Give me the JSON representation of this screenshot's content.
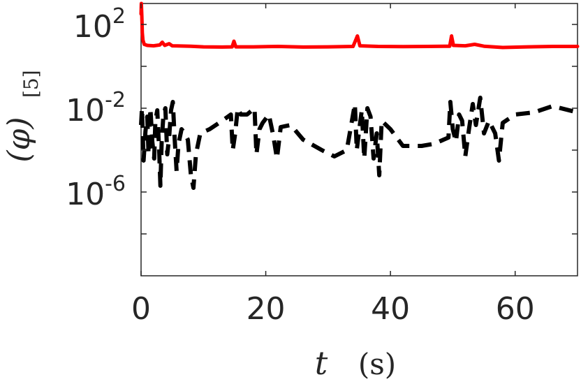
{
  "chart_data": {
    "type": "line",
    "title": "",
    "xlabel": {
      "var": "t",
      "unit": "(s)"
    },
    "ylabel": {
      "var": "(φ)",
      "subscript": "[5]"
    },
    "xlim": [
      0,
      70
    ],
    "ylim_exponent": [
      -10,
      3
    ],
    "yscale": "log",
    "x_ticks": [
      0,
      20,
      40,
      60
    ],
    "x_tick_labels": [
      "0",
      "20",
      "40",
      "60"
    ],
    "y_ticks": [
      {
        "exp": 2,
        "base": "10",
        "sup": "2"
      },
      {
        "exp": -2,
        "base": "10",
        "sup": "-2"
      },
      {
        "exp": -6,
        "base": "10",
        "sup": "-6"
      }
    ],
    "y_minor_exp": [
      0,
      -4,
      -8
    ],
    "grid": false,
    "legend": "none",
    "series": [
      {
        "style": "solid",
        "color": "#ff0000",
        "points": [
          [
            0.0,
            2.5
          ],
          [
            0.05,
            3.0
          ],
          [
            0.12,
            2.4
          ],
          [
            0.2,
            1.6
          ],
          [
            0.3,
            1.25
          ],
          [
            0.5,
            1.05
          ],
          [
            1.0,
            1.0
          ],
          [
            2.0,
            0.98
          ],
          [
            3.0,
            1.02
          ],
          [
            3.4,
            1.15
          ],
          [
            3.8,
            1.0
          ],
          [
            4.5,
            1.08
          ],
          [
            5.0,
            0.98
          ],
          [
            8,
            0.96
          ],
          [
            10,
            0.93
          ],
          [
            13,
            0.92
          ],
          [
            14.6,
            0.93
          ],
          [
            14.9,
            1.2
          ],
          [
            15.2,
            0.93
          ],
          [
            18,
            0.93
          ],
          [
            22,
            0.95
          ],
          [
            26,
            0.92
          ],
          [
            30,
            0.93
          ],
          [
            34,
            0.95
          ],
          [
            34.7,
            1.45
          ],
          [
            35.1,
            0.98
          ],
          [
            38,
            0.95
          ],
          [
            42,
            0.94
          ],
          [
            46,
            0.95
          ],
          [
            49.5,
            0.96
          ],
          [
            49.8,
            1.45
          ],
          [
            50.1,
            1.0
          ],
          [
            52,
            0.98
          ],
          [
            53.5,
            1.05
          ],
          [
            55,
            0.96
          ],
          [
            58,
            0.9
          ],
          [
            62,
            0.93
          ],
          [
            66,
            0.95
          ],
          [
            70,
            0.95
          ]
        ]
      },
      {
        "style": "dashed",
        "color": "#000000",
        "points": [
          [
            0.0,
            -2.8
          ],
          [
            0.15,
            -2.0
          ],
          [
            0.4,
            -4.5
          ],
          [
            0.7,
            -3.1
          ],
          [
            1.0,
            -2.4
          ],
          [
            1.2,
            -4.2
          ],
          [
            1.5,
            -2.0
          ],
          [
            1.8,
            -3.6
          ],
          [
            2.1,
            -4.4
          ],
          [
            2.3,
            -2.6
          ],
          [
            2.6,
            -2.1
          ],
          [
            2.9,
            -4.0
          ],
          [
            3.1,
            -5.7
          ],
          [
            3.3,
            -3.6
          ],
          [
            3.6,
            -2.3
          ],
          [
            3.9,
            -2.0
          ],
          [
            4.2,
            -4.2
          ],
          [
            4.5,
            -3.4
          ],
          [
            4.8,
            -2.1
          ],
          [
            5.1,
            -1.7
          ],
          [
            5.4,
            -3.5
          ],
          [
            5.7,
            -5.0
          ],
          [
            6.0,
            -3.7
          ],
          [
            6.5,
            -3.0
          ],
          [
            7.0,
            -3.2
          ],
          [
            7.5,
            -3.5
          ],
          [
            8.0,
            -5.2
          ],
          [
            8.4,
            -5.8
          ],
          [
            8.8,
            -4.2
          ],
          [
            9.5,
            -3.2
          ],
          [
            11,
            -3.0
          ],
          [
            13,
            -2.6
          ],
          [
            14.4,
            -2.3
          ],
          [
            14.7,
            -4.0
          ],
          [
            15.1,
            -3.2
          ],
          [
            15.5,
            -2.0
          ],
          [
            16,
            -2.3
          ],
          [
            17,
            -2.3
          ],
          [
            18.2,
            -2.0
          ],
          [
            18.5,
            -4.2
          ],
          [
            19.0,
            -3.0
          ],
          [
            19.5,
            -2.7
          ],
          [
            20.5,
            -2.3
          ],
          [
            21.2,
            -3.3
          ],
          [
            21.8,
            -4.4
          ],
          [
            22.4,
            -2.9
          ],
          [
            24,
            -2.8
          ],
          [
            26,
            -3.5
          ],
          [
            29,
            -4.0
          ],
          [
            31,
            -4.3
          ],
          [
            33,
            -4.0
          ],
          [
            34.3,
            -1.8
          ],
          [
            34.6,
            -4.0
          ],
          [
            35.0,
            -3.0
          ],
          [
            35.4,
            -2.1
          ],
          [
            35.8,
            -4.4
          ],
          [
            36.3,
            -2.0
          ],
          [
            36.8,
            -2.4
          ],
          [
            37.3,
            -4.4
          ],
          [
            37.8,
            -3.2
          ],
          [
            38.2,
            -5.2
          ],
          [
            38.6,
            -2.6
          ],
          [
            40,
            -3.0
          ],
          [
            42,
            -3.8
          ],
          [
            45,
            -3.8
          ],
          [
            47,
            -3.7
          ],
          [
            49.3,
            -3.4
          ],
          [
            49.6,
            -1.7
          ],
          [
            50.0,
            -3.0
          ],
          [
            50.5,
            -3.6
          ],
          [
            51.0,
            -2.3
          ],
          [
            51.5,
            -2.6
          ],
          [
            52.0,
            -4.3
          ],
          [
            52.6,
            -3.0
          ],
          [
            53.2,
            -1.8
          ],
          [
            53.7,
            -2.8
          ],
          [
            54.4,
            -1.5
          ],
          [
            55.0,
            -3.2
          ],
          [
            55.8,
            -2.6
          ],
          [
            56.8,
            -3.2
          ],
          [
            57.4,
            -4.5
          ],
          [
            58.0,
            -2.7
          ],
          [
            60,
            -2.3
          ],
          [
            63,
            -2.2
          ],
          [
            66,
            -1.9
          ],
          [
            70,
            -2.2
          ]
        ]
      }
    ]
  }
}
